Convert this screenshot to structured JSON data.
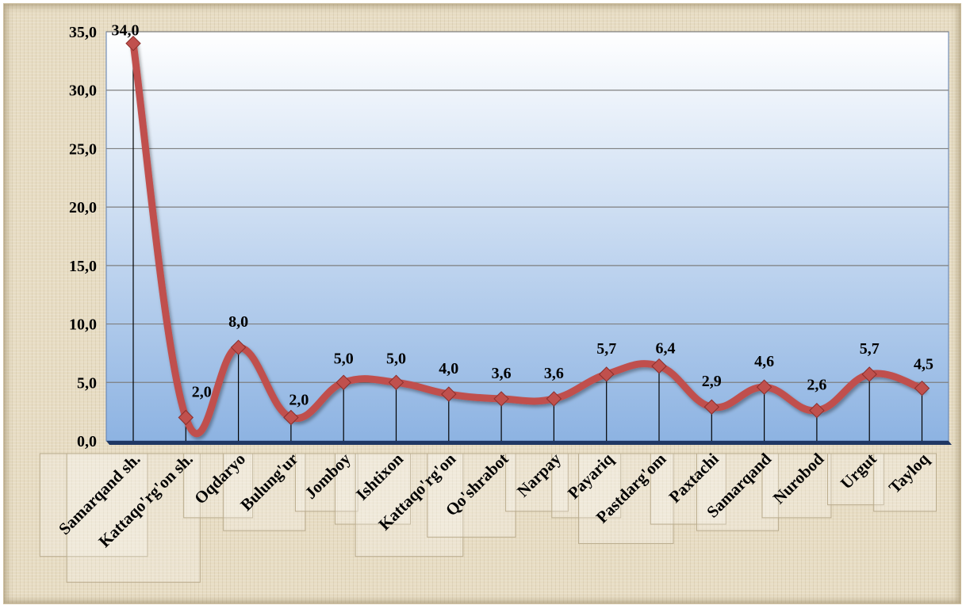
{
  "chart_data": {
    "type": "line",
    "smooth": true,
    "categories": [
      "Samarqand sh.",
      "Kattaqo'rg'on sh.",
      "Oqdaryo",
      "Bulung'ur",
      "Jomboy",
      "Ishtixon",
      "Kattaqo'rg'on",
      "Qo'shrabot",
      "Narpay",
      "Payariq",
      "Pastdarg'om",
      "Paxtachi",
      "Samarqand",
      "Nurobod",
      "Urgut",
      "Tayloq"
    ],
    "values": [
      34.0,
      2.0,
      8.0,
      2.0,
      5.0,
      5.0,
      4.0,
      3.6,
      3.6,
      5.7,
      6.4,
      2.9,
      4.6,
      2.6,
      5.7,
      4.5
    ],
    "data_labels": [
      "34,0",
      "2,0",
      "8,0",
      "2,0",
      "5,0",
      "5,0",
      "4,0",
      "3,6",
      "3,6",
      "5,7",
      "6,4",
      "2,9",
      "4,6",
      "2,6",
      "5,7",
      "4,5"
    ],
    "ylim": [
      0,
      35
    ],
    "yticks": [
      "0,0",
      "5,0",
      "10,0",
      "15,0",
      "20,0",
      "25,0",
      "30,0",
      "35,0"
    ],
    "title": "",
    "xlabel": "",
    "ylabel": "",
    "grid": true,
    "drop_lines": true,
    "colors": {
      "line": "#c0504d",
      "marker": "#c0504d",
      "plot_top": "#ffffff",
      "plot_bottom": "#8db3e2",
      "gridline": "#7f7f7f",
      "floor": "#1f3763"
    }
  }
}
